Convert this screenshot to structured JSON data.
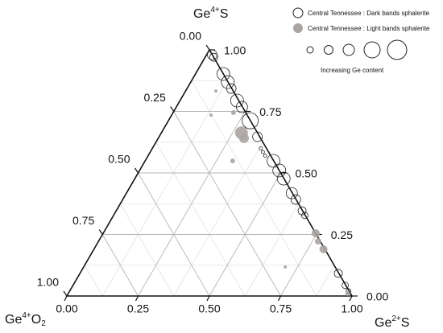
{
  "chart_data": {
    "type": "ternary",
    "top_label": {
      "element": "Ge",
      "charge": "4+",
      "rest": "S"
    },
    "right_label": {
      "element": "Ge",
      "charge": "2+",
      "rest": "S"
    },
    "left_label": {
      "element": "Ge",
      "charge": "4+",
      "rest": "O",
      "subscript": "2"
    },
    "bottom_ticks": [
      {
        "value": 0,
        "label": "0.00"
      },
      {
        "value": 0.25,
        "label": "0.25"
      },
      {
        "value": 0.5,
        "label": "0.50"
      },
      {
        "value": 0.75,
        "label": "0.75"
      },
      {
        "value": 1,
        "label": "1.00"
      }
    ],
    "right_ticks": [
      {
        "value": 0,
        "label": "0.00"
      },
      {
        "value": 0.25,
        "label": "0.25"
      },
      {
        "value": 0.5,
        "label": "0.50"
      },
      {
        "value": 0.75,
        "label": "0.75"
      },
      {
        "value": 1,
        "label": "1.00"
      }
    ],
    "left_ticks": [
      {
        "value": 0,
        "label": "0.00"
      },
      {
        "value": 0.25,
        "label": "0.25"
      },
      {
        "value": 0.5,
        "label": "0.50"
      },
      {
        "value": 0.75,
        "label": "0.75"
      },
      {
        "value": 1,
        "label": "1.00"
      }
    ],
    "minor_grid": [
      0.125,
      0.375,
      0.625,
      0.875
    ],
    "grid": true,
    "size_legend_label": "Increasing Ge content",
    "series": [
      {
        "name": "Central Tennessee : Dark bands sphalerite",
        "color": "#222222",
        "filled": false,
        "ge4s": [
          0.98,
          0.97,
          0.902,
          0.869,
          0.843,
          0.794,
          0.768,
          0.712,
          0.647,
          0.6,
          0.585,
          0.57,
          0.549,
          0.51,
          0.477,
          0.418,
          0.392,
          0.346,
          0.327,
          0.092,
          0.043,
          0.02
        ],
        "ge2s": [
          0.02,
          0.03,
          0.098,
          0.13,
          0.155,
          0.2,
          0.23,
          0.287,
          0.345,
          0.38,
          0.395,
          0.41,
          0.45,
          0.49,
          0.522,
          0.58,
          0.607,
          0.652,
          0.671,
          0.906,
          0.955,
          0.978
        ],
        "sizes": [
          6,
          5,
          8,
          8,
          6,
          8,
          7,
          10,
          6,
          2,
          2,
          2,
          8,
          8,
          8,
          7,
          6,
          5,
          4,
          5,
          4,
          3
        ]
      },
      {
        "name": "Central Tennessee : Light bands sphalerite",
        "color": "#aaa4a2",
        "filled": true,
        "ge4s": [
          0.833,
          0.735,
          0.745,
          0.663,
          0.641,
          0.549,
          0.255,
          0.222,
          0.19,
          0.118,
          0.01
        ],
        "ge2s": [
          0.106,
          0.138,
          0.212,
          0.281,
          0.301,
          0.307,
          0.745,
          0.77,
          0.805,
          0.707,
          0.98
        ],
        "sizes": [
          2,
          2,
          3,
          8,
          6,
          3,
          5,
          4,
          5,
          2,
          3
        ]
      }
    ]
  }
}
